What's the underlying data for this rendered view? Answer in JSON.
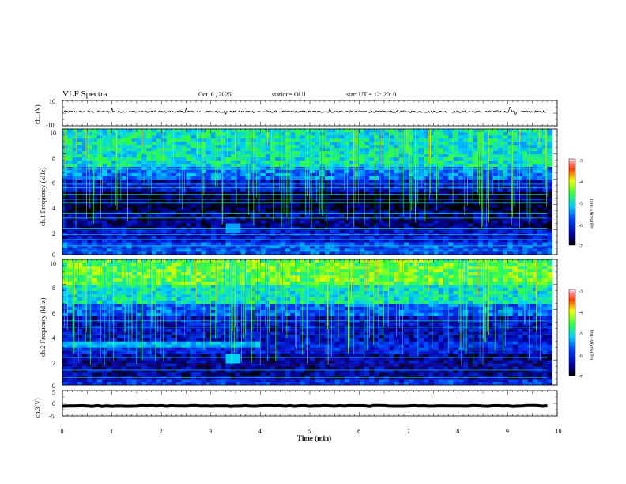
{
  "header": {
    "title": "VLF Spectra",
    "date": "Oct. 6 , 2025",
    "station": "station= OUJ",
    "start": "start UT = 12: 20: 0"
  },
  "colors": {
    "background": "#ffffff",
    "axis": "#000000",
    "trace": "#000000"
  },
  "chart_data": [
    {
      "type": "line",
      "name": "ch1-waveform",
      "ylabel": "ch.1(V)",
      "ylim": [
        -10,
        10
      ],
      "y_ticks": [
        "10",
        "-10"
      ],
      "xlim": [
        0,
        10
      ],
      "grid": false,
      "baseline": 1.2,
      "noise_amplitude": 0.8,
      "spikes": [
        {
          "t": 1.0,
          "v": 2.8
        },
        {
          "t": 2.5,
          "v": 3.0
        },
        {
          "t": 3.3,
          "v": -2.0
        },
        {
          "t": 5.4,
          "v": 2.2
        },
        {
          "t": 9.05,
          "v": 3.5
        },
        {
          "t": 9.15,
          "v": -2.6
        }
      ]
    },
    {
      "type": "heatmap",
      "name": "ch1-spectrogram",
      "ylabel": "ch.1 Frequency (kHz)",
      "ylim": [
        0,
        10
      ],
      "y_ticks": [
        "0",
        "2",
        "4",
        "6",
        "8",
        "10"
      ],
      "xlim": [
        0,
        9.8
      ],
      "colorbar": {
        "range": [
          -7,
          -3
        ],
        "ticks": [
          "-3",
          "-4",
          "-5",
          "-6",
          "-7"
        ],
        "label": "log(PSD)(V²/Hz)"
      },
      "bands": [
        {
          "f": [
            7.0,
            10.0
          ],
          "level": -5.0
        },
        {
          "f": [
            6.0,
            7.0
          ],
          "level": -5.6
        },
        {
          "f": [
            5.0,
            6.0
          ],
          "level": -6.3
        },
        {
          "f": [
            3.5,
            5.0
          ],
          "level": -6.9
        },
        {
          "f": [
            2.0,
            3.5
          ],
          "level": -6.6
        },
        {
          "f": [
            0.8,
            2.0
          ],
          "level": -6.2
        },
        {
          "f": [
            0.0,
            0.8
          ],
          "level": -5.8
        }
      ],
      "tone_lines_khz": [
        0.3,
        0.7,
        1.2,
        1.6,
        2.1,
        2.9,
        3.3,
        4.1,
        4.4,
        4.8,
        5.3,
        5.6,
        6.8,
        7.2
      ],
      "features": [
        {
          "t": 3.45,
          "f": 2.0,
          "level": -5.4
        }
      ]
    },
    {
      "type": "heatmap",
      "name": "ch2-spectrogram",
      "ylabel": "ch.2 Frequency (kHz)",
      "ylim": [
        0,
        10
      ],
      "y_ticks": [
        "0",
        "2",
        "4",
        "6",
        "8",
        "10"
      ],
      "xlim": [
        0,
        9.8
      ],
      "colorbar": {
        "range": [
          -7,
          -3
        ],
        "ticks": [
          "-3",
          "-4",
          "-5",
          "-6",
          "-7"
        ],
        "label": "log(PSD)(V²/Hz)"
      },
      "bands": [
        {
          "f": [
            8.0,
            10.0
          ],
          "level": -4.5
        },
        {
          "f": [
            6.5,
            8.0
          ],
          "level": -5.0
        },
        {
          "f": [
            5.5,
            6.5
          ],
          "level": -5.7
        },
        {
          "f": [
            3.5,
            5.5
          ],
          "level": -6.3
        },
        {
          "f": [
            2.5,
            3.5
          ],
          "level": -6.1
        },
        {
          "f": [
            0.5,
            2.5
          ],
          "level": -6.5
        },
        {
          "f": [
            0.0,
            0.5
          ],
          "level": -6.0
        }
      ],
      "tone_lines_khz": [
        0.6,
        1.2,
        1.6,
        2.2,
        2.8,
        4.0,
        4.6,
        5.1,
        7.2
      ],
      "features": [
        {
          "t0": 0.0,
          "t1": 4.0,
          "f0": 3.0,
          "f1": 3.5,
          "level": -5.3
        },
        {
          "t": 3.45,
          "f": 2.0,
          "level": -5.2
        }
      ]
    },
    {
      "type": "line",
      "name": "ch3-waveform",
      "ylabel": "ch.3(V)",
      "ylim": [
        -5,
        5
      ],
      "y_ticks": [
        "5",
        "0",
        "-5"
      ],
      "xlim": [
        0,
        10
      ],
      "grid": false,
      "baseline": -1.0,
      "noise_amplitude": 0.15
    }
  ],
  "x_axis": {
    "label": "Time (min)",
    "ticks": [
      "0",
      "1",
      "2",
      "3",
      "4",
      "5",
      "6",
      "7",
      "8",
      "9",
      "10"
    ]
  }
}
